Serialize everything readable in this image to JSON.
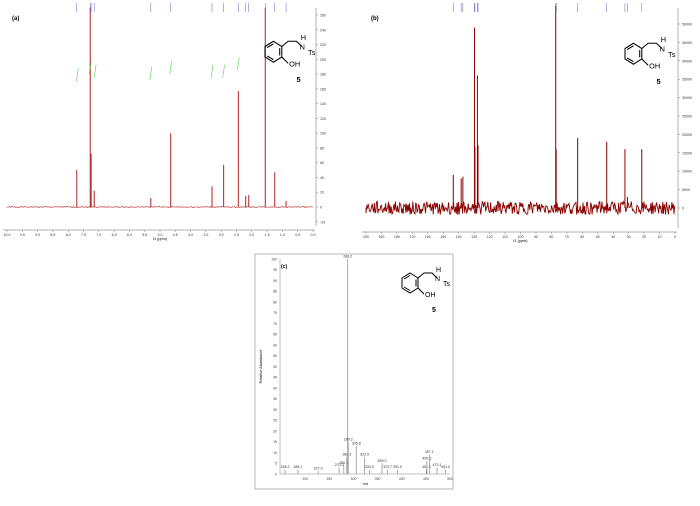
{
  "molecule": {
    "h": "H",
    "n": "N",
    "ts": "Ts",
    "oh": "OH",
    "label": "5"
  },
  "chart_data": [
    {
      "id": "a",
      "type": "line",
      "title": "(a)",
      "xlabel": "f1 (ppm)",
      "ylabel": "",
      "xlim": [
        10,
        0
      ],
      "ylim": [
        -20,
        270
      ],
      "xticks": [
        10.0,
        9.5,
        9.0,
        8.5,
        8.0,
        7.5,
        7.0,
        6.5,
        6.0,
        5.5,
        5.0,
        4.5,
        4.0,
        3.5,
        3.0,
        2.5,
        2.0,
        1.5,
        1.0,
        0.5,
        0.0
      ],
      "yticks": [
        -20,
        0,
        20,
        40,
        60,
        80,
        100,
        120,
        140,
        160,
        180,
        200,
        220,
        240,
        260
      ],
      "peaks": [
        [
          7.72,
          50
        ],
        [
          7.28,
          270
        ],
        [
          7.25,
          72
        ],
        [
          7.15,
          22
        ],
        [
          5.3,
          12
        ],
        [
          4.65,
          100
        ],
        [
          3.3,
          28
        ],
        [
          2.92,
          57
        ],
        [
          2.44,
          157
        ],
        [
          2.2,
          15
        ],
        [
          2.1,
          16
        ],
        [
          1.56,
          270
        ],
        [
          1.25,
          47
        ],
        [
          0.88,
          8
        ]
      ],
      "color": "#b22222"
    },
    {
      "id": "b",
      "type": "line",
      "title": "(b)",
      "xlabel": "f1 (ppm)",
      "ylabel": "",
      "xlim": [
        200,
        0
      ],
      "ylim": [
        -5000,
        54000
      ],
      "xticks": [
        200,
        190,
        180,
        170,
        160,
        150,
        140,
        130,
        120,
        110,
        100,
        90,
        80,
        70,
        60,
        50,
        40,
        30,
        20,
        10,
        0
      ],
      "yticks": [
        0,
        5000,
        10000,
        15000,
        20000,
        25000,
        30000,
        35000,
        40000,
        45000,
        50000
      ],
      "peaks": [
        [
          143.5,
          9000
        ],
        [
          138.4,
          8000
        ],
        [
          137.3,
          8500
        ],
        [
          129.8,
          49000
        ],
        [
          129.5,
          16500
        ],
        [
          127.9,
          36000
        ],
        [
          127.5,
          17000
        ],
        [
          77.2,
          60000
        ],
        [
          76.9,
          16000
        ],
        [
          63.0,
          19000
        ],
        [
          44.2,
          18000
        ],
        [
          32.4,
          16000
        ],
        [
          30.8,
          3000
        ],
        [
          21.5,
          16000
        ]
      ],
      "color": "#8b0000"
    },
    {
      "id": "c",
      "type": "bar",
      "title": "(c)",
      "xlabel": "m/z",
      "ylabel": "Relative Abundance",
      "xlim": [
        150,
        500
      ],
      "ylim": [
        0,
        100
      ],
      "xticks": [
        200,
        250,
        300,
        350,
        400,
        450,
        500
      ],
      "yticks": [
        0,
        5,
        10,
        15,
        20,
        25,
        30,
        35,
        40,
        45,
        50,
        55,
        60,
        65,
        70,
        75,
        80,
        85,
        90,
        95,
        100
      ],
      "peaks": [
        [
          158.2,
          2
        ],
        [
          185.1,
          2
        ],
        [
          227.0,
          1.5
        ],
        [
          270.3,
          3
        ],
        [
          280.1,
          4
        ],
        [
          286.3,
          8
        ],
        [
          288.2,
          100
        ],
        [
          289.2,
          15
        ],
        [
          305.8,
          13
        ],
        [
          322.9,
          8
        ],
        [
          333.0,
          2
        ],
        [
          359.2,
          5
        ],
        [
          370.7,
          2
        ],
        [
          391.0,
          2
        ],
        [
          451.0,
          2
        ],
        [
          452.1,
          6
        ],
        [
          457.1,
          9
        ],
        [
          473.1,
          3
        ],
        [
          491.0,
          2
        ]
      ],
      "labels": [
        "158.2",
        "185.1",
        "227.0",
        "270.3",
        "280.1",
        "286.3",
        "288.2",
        "289.2",
        "305.8",
        "322.9",
        "333.0",
        "359.2",
        "370.7",
        "391.0",
        "451.0",
        "452.1",
        "457.1",
        "473.1",
        "491.0"
      ],
      "color": "#888888"
    }
  ]
}
